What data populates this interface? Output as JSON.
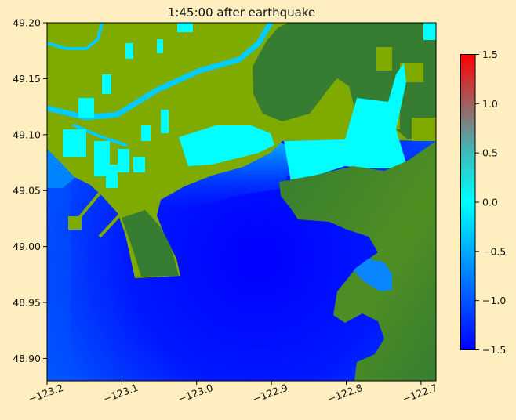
{
  "chart_data": {
    "type": "heatmap",
    "title": "1:45:00 after earthquake",
    "xlabel": "",
    "ylabel": "",
    "xlim": [
      -123.2,
      -122.68
    ],
    "ylim": [
      48.88,
      49.2
    ],
    "xticks": [
      -123.2,
      -123.1,
      -123.0,
      -122.9,
      -122.8,
      -122.7
    ],
    "xtick_labels": [
      "−123.2",
      "−123.1",
      "−123.0",
      "−122.9",
      "−122.8",
      "−122.7"
    ],
    "yticks": [
      49.2,
      49.15,
      49.1,
      49.05,
      49.0,
      48.95,
      48.9
    ],
    "ytick_labels": [
      "49.20",
      "49.15",
      "49.10",
      "49.05",
      "49.00",
      "48.95",
      "48.90"
    ],
    "colorbar": {
      "range": [
        -1.5,
        1.5
      ],
      "ticks": [
        1.5,
        1.0,
        0.5,
        0.0,
        -0.5,
        -1.0,
        -1.5
      ],
      "tick_labels": [
        "1.5",
        "1.0",
        "0.5",
        "0.0",
        "−0.5",
        "−1.0",
        "−1.5"
      ],
      "colors": [
        {
          "value": -1.5,
          "color": "#0000ff"
        },
        {
          "value": 0.0,
          "color": "#00ffff"
        },
        {
          "value": 0.5,
          "color": "#3cbcbc"
        },
        {
          "value": 1.0,
          "color": "#a26060"
        },
        {
          "value": 1.5,
          "color": "#ff0000"
        }
      ]
    },
    "land_colors": {
      "lowland": "#7fab00",
      "highland": "#367d32"
    },
    "grid": false
  }
}
